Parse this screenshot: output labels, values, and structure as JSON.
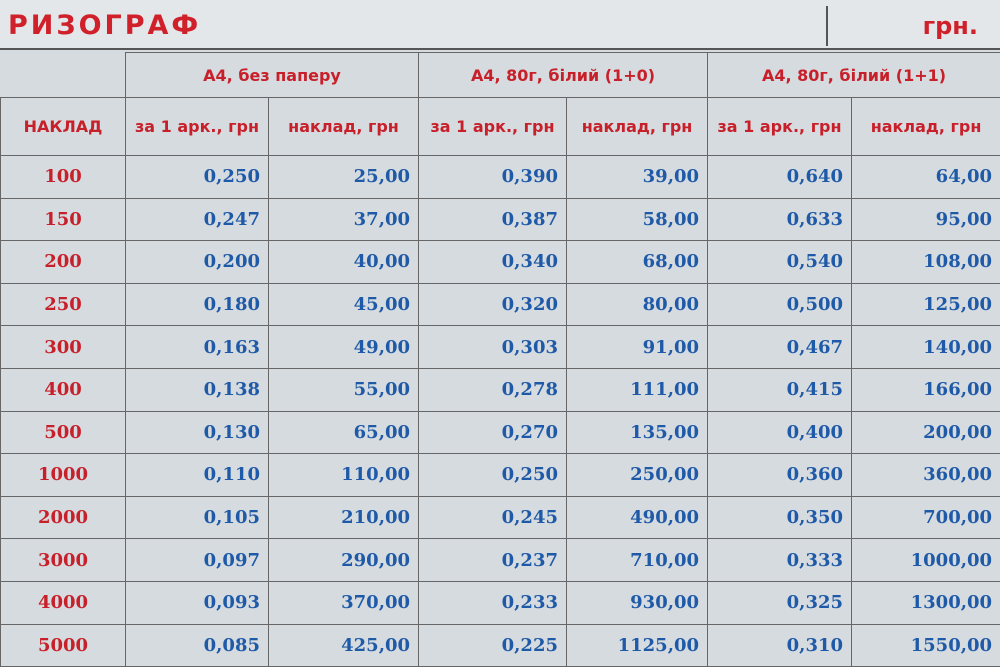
{
  "header": {
    "title": "РИЗОГРАФ",
    "unit": "грн."
  },
  "table": {
    "groups": [
      "А4, без паперу",
      "А4, 80г, білий (1+0)",
      "А4, 80г, білий (1+1)"
    ],
    "columns": [
      "НАКЛАД",
      "за 1 арк., грн",
      "наклад, грн",
      "за 1 арк., грн",
      "наклад, грн",
      "за 1 арк., грн",
      "наклад, грн"
    ],
    "rows": [
      [
        "100",
        "0,250",
        "25,00",
        "0,390",
        "39,00",
        "0,640",
        "64,00"
      ],
      [
        "150",
        "0,247",
        "37,00",
        "0,387",
        "58,00",
        "0,633",
        "95,00"
      ],
      [
        "200",
        "0,200",
        "40,00",
        "0,340",
        "68,00",
        "0,540",
        "108,00"
      ],
      [
        "250",
        "0,180",
        "45,00",
        "0,320",
        "80,00",
        "0,500",
        "125,00"
      ],
      [
        "300",
        "0,163",
        "49,00",
        "0,303",
        "91,00",
        "0,467",
        "140,00"
      ],
      [
        "400",
        "0,138",
        "55,00",
        "0,278",
        "111,00",
        "0,415",
        "166,00"
      ],
      [
        "500",
        "0,130",
        "65,00",
        "0,270",
        "135,00",
        "0,400",
        "200,00"
      ],
      [
        "1000",
        "0,110",
        "110,00",
        "0,250",
        "250,00",
        "0,360",
        "360,00"
      ],
      [
        "2000",
        "0,105",
        "210,00",
        "0,245",
        "490,00",
        "0,350",
        "700,00"
      ],
      [
        "3000",
        "0,097",
        "290,00",
        "0,237",
        "710,00",
        "0,333",
        "1000,00"
      ],
      [
        "4000",
        "0,093",
        "370,00",
        "0,233",
        "930,00",
        "0,325",
        "1300,00"
      ],
      [
        "5000",
        "0,085",
        "425,00",
        "0,225",
        "1125,00",
        "0,310",
        "1550,00"
      ]
    ]
  }
}
